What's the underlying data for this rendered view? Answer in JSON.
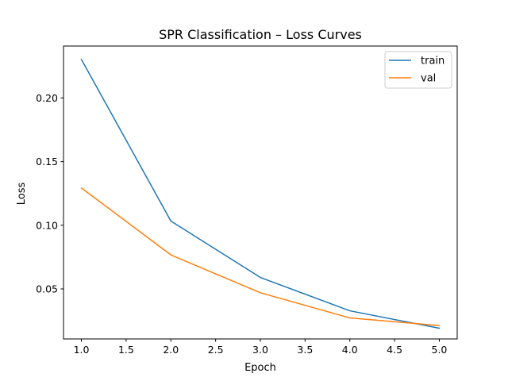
{
  "chart_data": {
    "type": "line",
    "title": "SPR Classification – Loss Curves",
    "xlabel": "Epoch",
    "ylabel": "Loss",
    "x": [
      1,
      2,
      3,
      4,
      5
    ],
    "xlim": [
      0.8,
      5.2
    ],
    "ylim": [
      0.0107,
      0.2408
    ],
    "xticks": [
      1.0,
      1.5,
      2.0,
      2.5,
      3.0,
      3.5,
      4.0,
      4.5,
      5.0
    ],
    "xtick_labels": [
      "1.0",
      "1.5",
      "2.0",
      "2.5",
      "3.0",
      "3.5",
      "4.0",
      "4.5",
      "5.0"
    ],
    "yticks": [
      0.05,
      0.1,
      0.15,
      0.2
    ],
    "ytick_labels": [
      "0.05",
      "0.10",
      "0.15",
      "0.20"
    ],
    "grid": false,
    "legend_position": "top-right",
    "series": [
      {
        "name": "train",
        "color": "#1f77b4",
        "values": [
          0.2303,
          0.1033,
          0.059,
          0.0328,
          0.0191
        ]
      },
      {
        "name": "val",
        "color": "#ff7f0e",
        "values": [
          0.1293,
          0.0767,
          0.047,
          0.0272,
          0.0212
        ]
      }
    ]
  }
}
